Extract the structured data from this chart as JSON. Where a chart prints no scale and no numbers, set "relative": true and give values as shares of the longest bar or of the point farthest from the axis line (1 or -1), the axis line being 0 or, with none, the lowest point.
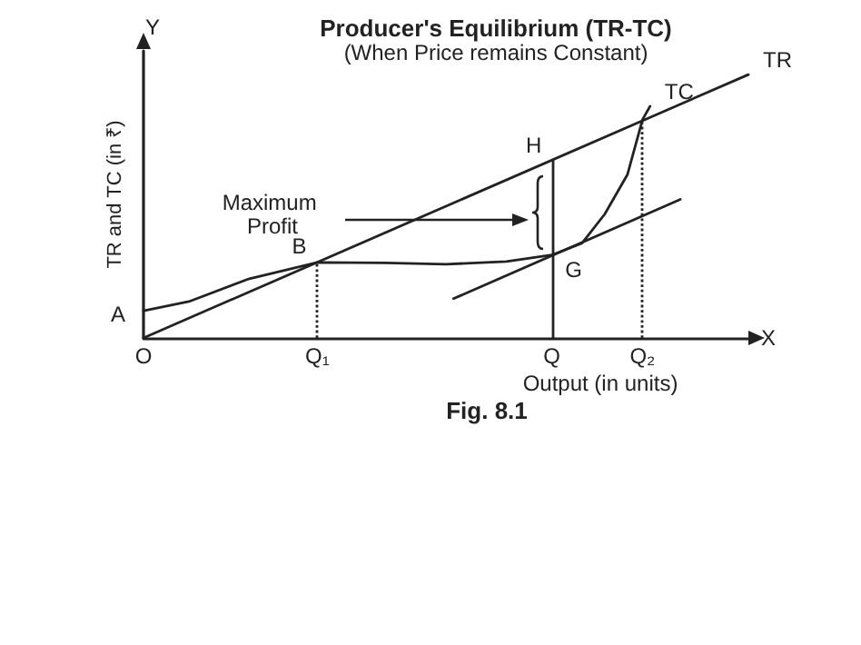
{
  "chart_data": {
    "type": "line",
    "title": "Producer's Equilibrium (TR-TC)",
    "subtitle": "(When Price remains Constant)",
    "xlabel": "Output (in units)",
    "ylabel": "TR and TC (in ₹)",
    "relative": true,
    "grid": false,
    "legend": false,
    "marker": "none",
    "categories": [
      "O",
      null,
      null,
      null,
      null,
      null,
      null,
      null,
      null,
      null,
      null,
      null,
      null,
      null,
      null,
      null,
      null,
      null,
      null,
      null,
      null,
      null,
      null,
      "Q₁",
      null,
      null,
      null,
      null,
      null,
      null,
      null,
      null,
      null,
      null,
      null,
      null,
      null,
      null,
      null,
      null,
      null,
      null,
      null,
      null,
      null,
      null,
      null,
      null,
      null,
      null,
      null,
      null,
      null,
      null,
      "Q",
      null,
      null,
      null,
      null,
      null,
      null,
      null,
      null,
      null,
      null,
      null,
      "Q₂",
      null,
      null,
      null,
      null,
      null,
      null,
      null,
      null,
      null,
      null,
      null,
      null,
      null,
      null
    ],
    "series": [
      {
        "name": "TC",
        "color": "#222222",
        "values": [
          0.103,
          null,
          null,
          null,
          null,
          null,
          0.138,
          null,
          null,
          null,
          null,
          null,
          null,
          null,
          0.225,
          null,
          null,
          null,
          null,
          null,
          null,
          null,
          null,
          0.287,
          null,
          null,
          null,
          null,
          null,
          null,
          null,
          null,
          0.285,
          null,
          null,
          null,
          null,
          null,
          null,
          null,
          0.28,
          null,
          null,
          null,
          null,
          null,
          null,
          null,
          0.29,
          null,
          null,
          null,
          null,
          null,
          0.315,
          null,
          null,
          null,
          0.36,
          null,
          null,
          0.47,
          null,
          null,
          0.62,
          null,
          0.829,
          0.88,
          null,
          null,
          null,
          null,
          null,
          null,
          null,
          null,
          null,
          null,
          null,
          null,
          null
        ]
      },
      {
        "name": "TR",
        "color": "#222222",
        "values": [
          0,
          null,
          null,
          null,
          null,
          null,
          null,
          null,
          null,
          null,
          null,
          null,
          null,
          null,
          null,
          null,
          null,
          null,
          null,
          null,
          null,
          null,
          null,
          null,
          null,
          null,
          null,
          null,
          null,
          null,
          null,
          null,
          null,
          null,
          null,
          null,
          null,
          null,
          null,
          null,
          null,
          null,
          null,
          null,
          null,
          null,
          null,
          null,
          null,
          null,
          null,
          null,
          null,
          null,
          null,
          null,
          null,
          null,
          null,
          null,
          null,
          null,
          null,
          null,
          null,
          null,
          null,
          null,
          null,
          null,
          null,
          null,
          null,
          null,
          null,
          null,
          null,
          null,
          null,
          null,
          1
        ]
      },
      {
        "color": "#222222",
        "values": [
          null,
          null,
          null,
          null,
          null,
          null,
          null,
          null,
          null,
          null,
          null,
          null,
          null,
          null,
          null,
          null,
          null,
          null,
          null,
          null,
          null,
          null,
          null,
          null,
          null,
          null,
          null,
          null,
          null,
          null,
          null,
          null,
          null,
          null,
          null,
          null,
          null,
          null,
          null,
          null,
          null,
          0.149,
          null,
          null,
          null,
          null,
          null,
          null,
          null,
          null,
          null,
          null,
          null,
          null,
          null,
          null,
          null,
          null,
          null,
          null,
          null,
          null,
          null,
          null,
          null,
          null,
          null,
          null,
          null,
          null,
          null,
          0.526,
          null,
          null,
          null,
          null,
          null,
          null,
          null,
          null,
          null
        ]
      }
    ],
    "ref_lines": [
      {
        "axis": "x",
        "value": "Q₁",
        "line_style": "dotted"
      },
      {
        "axis": "x",
        "value": "Q",
        "line_style": "solid"
      },
      {
        "axis": "x",
        "value": "Q₂",
        "line_style": "dotted"
      }
    ],
    "annotations": [
      "Y",
      "X",
      {
        "text": "A",
        "x": "O",
        "y": 0.103
      },
      {
        "text": "B",
        "x": "Q₁",
        "y": 0.287
      },
      {
        "text": "G",
        "x": "Q",
        "y": 0.315
      },
      {
        "text": "H",
        "x": "Q",
        "y": 0.675
      },
      "Maximum Profit",
      "Fig. 8.1"
    ]
  }
}
